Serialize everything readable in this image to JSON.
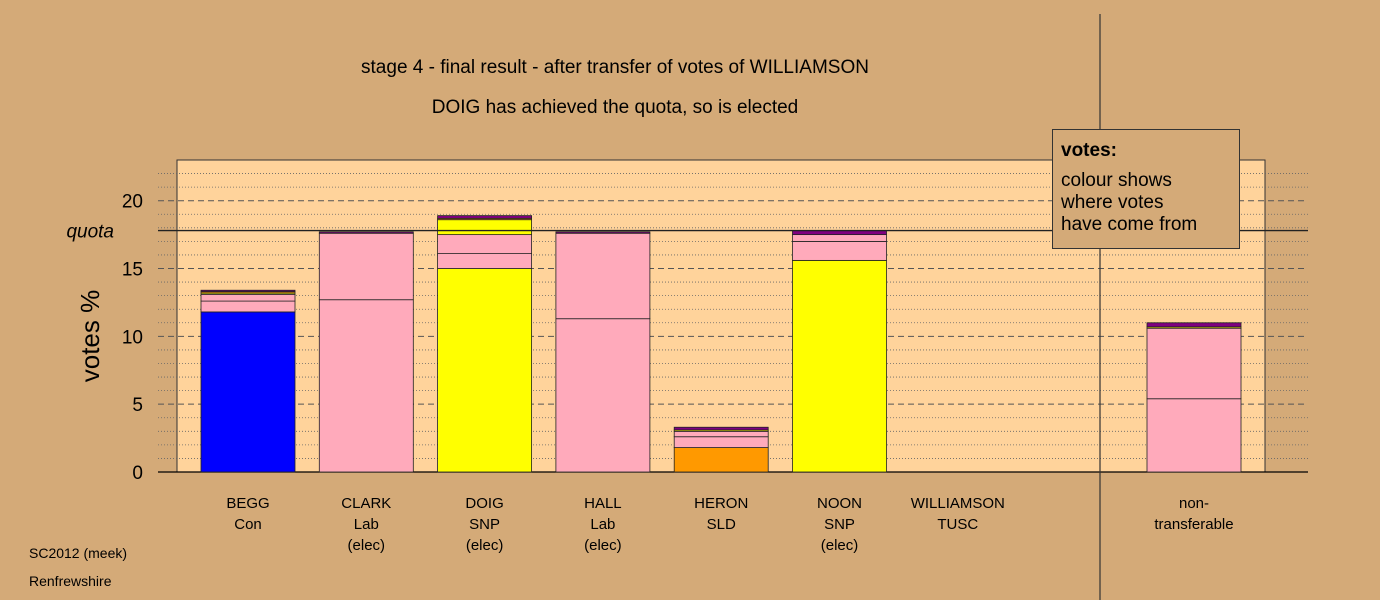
{
  "chart_data": {
    "type": "bar",
    "stacked": true,
    "title": "stage 4 - final result - after transfer of votes of WILLIAMSON",
    "subtitle": "DOIG has achieved the quota, so is elected",
    "ylabel": "votes %",
    "ylim": [
      0,
      23
    ],
    "yticks": [
      0,
      5,
      10,
      15,
      20
    ],
    "quota": 17.8,
    "quota_label": "quota",
    "grid": true,
    "colors": {
      "Con": "#0000ff",
      "Lab": "#ffaabb",
      "SNP": "#ffff00",
      "SLD": "#ff9900",
      "TUSC": "#800080",
      "plot_bg": "#ffd39b",
      "page_bg": "#d4aa78"
    },
    "candidates": [
      {
        "name": "BEGG",
        "party": "Con",
        "status": "",
        "segments": [
          {
            "from": "Con",
            "value": 11.8
          },
          {
            "from": "Lab",
            "value": 0.8
          },
          {
            "from": "Lab",
            "value": 0.5
          },
          {
            "from": "SNP",
            "value": 0.1
          },
          {
            "from": "SLD",
            "value": 0.1
          },
          {
            "from": "TUSC",
            "value": 0.1
          }
        ]
      },
      {
        "name": "CLARK",
        "party": "Lab",
        "status": "(elec)",
        "segments": [
          {
            "from": "Lab",
            "value": 12.7
          },
          {
            "from": "Lab",
            "value": 4.9
          },
          {
            "from": "TUSC",
            "value": 0.1
          }
        ]
      },
      {
        "name": "DOIG",
        "party": "SNP",
        "status": "(elec)",
        "segments": [
          {
            "from": "SNP",
            "value": 15.0
          },
          {
            "from": "Lab",
            "value": 1.1
          },
          {
            "from": "Lab",
            "value": 1.4
          },
          {
            "from": "SNP",
            "value": 1.1
          },
          {
            "from": "SLD",
            "value": 0.1
          },
          {
            "from": "TUSC",
            "value": 0.2
          }
        ]
      },
      {
        "name": "HALL",
        "party": "Lab",
        "status": "(elec)",
        "segments": [
          {
            "from": "Lab",
            "value": 11.3
          },
          {
            "from": "Lab",
            "value": 6.3
          },
          {
            "from": "TUSC",
            "value": 0.1
          }
        ]
      },
      {
        "name": "HERON",
        "party": "SLD",
        "status": "",
        "segments": [
          {
            "from": "SLD",
            "value": 1.8
          },
          {
            "from": "Lab",
            "value": 0.8
          },
          {
            "from": "Lab",
            "value": 0.4
          },
          {
            "from": "SNP",
            "value": 0.1
          },
          {
            "from": "TUSC",
            "value": 0.2
          }
        ]
      },
      {
        "name": "NOON",
        "party": "SNP",
        "status": "(elec)",
        "segments": [
          {
            "from": "SNP",
            "value": 15.6
          },
          {
            "from": "Lab",
            "value": 1.4
          },
          {
            "from": "Lab",
            "value": 0.5
          },
          {
            "from": "TUSC",
            "value": 0.3
          }
        ]
      },
      {
        "name": "WILLIAMSON",
        "party": "TUSC",
        "status": "",
        "segments": []
      }
    ],
    "nontransferable": {
      "name": "non-",
      "party": "transferable",
      "status": "",
      "segments": [
        {
          "from": "Lab",
          "value": 5.4
        },
        {
          "from": "Lab",
          "value": 5.2
        },
        {
          "from": "SNP",
          "value": 0.1
        },
        {
          "from": "TUSC",
          "value": 0.3
        }
      ]
    }
  },
  "legend": {
    "title": "votes:",
    "lines": [
      "colour shows",
      "where votes",
      "have come from"
    ]
  },
  "footer": {
    "line1": "SC2012 (meek)",
    "line2": "Renfrewshire"
  }
}
